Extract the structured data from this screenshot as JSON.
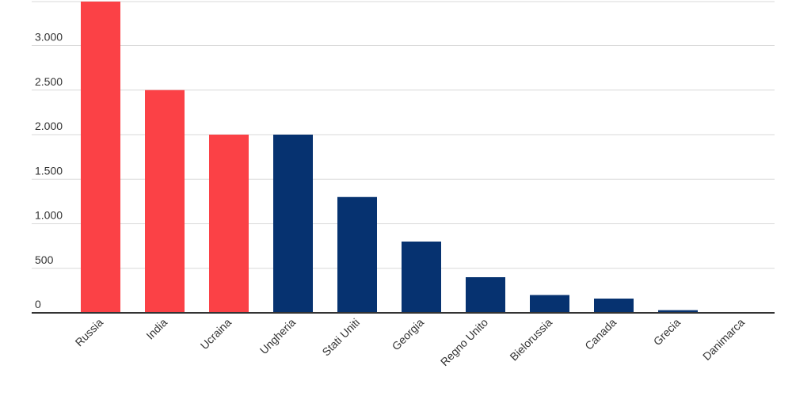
{
  "chart_data": {
    "type": "bar",
    "categories": [
      "Russia",
      "India",
      "Ucraina",
      "Ungheria",
      "Stati Uniti",
      "Georgia",
      "Regno Unito",
      "Bielorussia",
      "Canada",
      "Grecia",
      "Danimarca"
    ],
    "values": [
      3500,
      2500,
      2000,
      2000,
      1300,
      800,
      400,
      200,
      160,
      30,
      5
    ],
    "colors": [
      "#fb4146",
      "#fb4146",
      "#fb4146",
      "#063270",
      "#063270",
      "#063270",
      "#063270",
      "#063270",
      "#063270",
      "#063270",
      "#063270"
    ],
    "y_ticks": [
      0,
      500,
      1000,
      1500,
      2000,
      2500,
      3000
    ],
    "y_tick_labels": [
      "0",
      "500",
      "1.000",
      "1.500",
      "2.000",
      "2.500",
      "3.000"
    ],
    "ylim": [
      0,
      3500
    ],
    "grid": true,
    "title": "",
    "xlabel": "",
    "ylabel": ""
  }
}
